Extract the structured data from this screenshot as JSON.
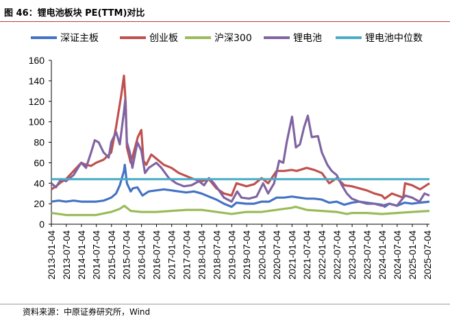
{
  "figure": {
    "title": "图 46：锂电池板块 PE(TTM)对比",
    "source": "资料来源：中原证券研究所，Wind"
  },
  "chart_data": {
    "type": "line",
    "title": "",
    "xlabel": "",
    "ylabel": "",
    "ylim": [
      0,
      160
    ],
    "yticks": [
      0,
      20,
      40,
      60,
      80,
      100,
      120,
      140,
      160
    ],
    "xlim": [
      "2013-01-04",
      "2025-07-31"
    ],
    "xticks": [
      "2013-01-04",
      "2013-07-04",
      "2014-01-04",
      "2014-07-04",
      "2015-01-04",
      "2015-07-04",
      "2016-01-04",
      "2016-07-04",
      "2017-01-04",
      "2017-07-04",
      "2018-01-04",
      "2018-07-04",
      "2019-01-04",
      "2019-07-04",
      "2020-01-04",
      "2020-07-04",
      "2021-01-04",
      "2021-07-04",
      "2022-01-04",
      "2022-07-04",
      "2023-01-04",
      "2023-07-04",
      "2024-01-04",
      "2024-07-04",
      "2025-01-04",
      "2025-07-04"
    ],
    "grid": false,
    "legend_position": "top",
    "series": [
      {
        "name": "深证主板",
        "color": "#4472c4",
        "points": [
          [
            "2013-01-04",
            22
          ],
          [
            "2013-04-01",
            23
          ],
          [
            "2013-07-01",
            22
          ],
          [
            "2013-10-01",
            23
          ],
          [
            "2014-01-01",
            22
          ],
          [
            "2014-04-01",
            22
          ],
          [
            "2014-07-01",
            22
          ],
          [
            "2014-10-01",
            23
          ],
          [
            "2015-01-01",
            26
          ],
          [
            "2015-03-01",
            30
          ],
          [
            "2015-04-15",
            38
          ],
          [
            "2015-06-05",
            52
          ],
          [
            "2015-06-15",
            58
          ],
          [
            "2015-07-10",
            40
          ],
          [
            "2015-08-25",
            32
          ],
          [
            "2015-09-20",
            35
          ],
          [
            "2015-11-15",
            36
          ],
          [
            "2016-01-15",
            28
          ],
          [
            "2016-04-01",
            32
          ],
          [
            "2016-07-01",
            33
          ],
          [
            "2016-10-01",
            34
          ],
          [
            "2017-01-01",
            33
          ],
          [
            "2017-04-01",
            32
          ],
          [
            "2017-07-01",
            31
          ],
          [
            "2017-10-01",
            32
          ],
          [
            "2018-01-01",
            30
          ],
          [
            "2018-04-01",
            27
          ],
          [
            "2018-07-01",
            24
          ],
          [
            "2018-10-01",
            20
          ],
          [
            "2019-01-01",
            17
          ],
          [
            "2019-03-01",
            21
          ],
          [
            "2019-07-01",
            20
          ],
          [
            "2019-10-01",
            20
          ],
          [
            "2020-01-01",
            22
          ],
          [
            "2020-04-01",
            22
          ],
          [
            "2020-07-01",
            26
          ],
          [
            "2020-10-01",
            26
          ],
          [
            "2021-01-01",
            27
          ],
          [
            "2021-04-01",
            26
          ],
          [
            "2021-07-01",
            25
          ],
          [
            "2021-10-01",
            25
          ],
          [
            "2022-01-01",
            24
          ],
          [
            "2022-04-01",
            21
          ],
          [
            "2022-07-01",
            22
          ],
          [
            "2022-10-01",
            19
          ],
          [
            "2023-01-01",
            21
          ],
          [
            "2023-04-01",
            22
          ],
          [
            "2023-07-01",
            21
          ],
          [
            "2023-10-01",
            20
          ],
          [
            "2024-01-01",
            19
          ],
          [
            "2024-02-05",
            17
          ],
          [
            "2024-04-01",
            20
          ],
          [
            "2024-07-01",
            18
          ],
          [
            "2024-10-01",
            21
          ],
          [
            "2025-01-01",
            20
          ],
          [
            "2025-04-01",
            21
          ],
          [
            "2025-07-31",
            22
          ]
        ]
      },
      {
        "name": "创业板",
        "color": "#c0504d",
        "points": [
          [
            "2013-01-04",
            34
          ],
          [
            "2013-03-01",
            37
          ],
          [
            "2013-05-01",
            41
          ],
          [
            "2013-07-01",
            44
          ],
          [
            "2013-10-01",
            52
          ],
          [
            "2014-01-01",
            60
          ],
          [
            "2014-03-01",
            58
          ],
          [
            "2014-05-01",
            57
          ],
          [
            "2014-07-01",
            60
          ],
          [
            "2014-10-01",
            63
          ],
          [
            "2015-01-01",
            70
          ],
          [
            "2015-03-01",
            95
          ],
          [
            "2015-05-01",
            125
          ],
          [
            "2015-06-05",
            145
          ],
          [
            "2015-06-25",
            118
          ],
          [
            "2015-07-10",
            75
          ],
          [
            "2015-08-25",
            60
          ],
          [
            "2015-10-01",
            70
          ],
          [
            "2015-11-20",
            85
          ],
          [
            "2016-01-01",
            92
          ],
          [
            "2016-01-28",
            62
          ],
          [
            "2016-03-01",
            58
          ],
          [
            "2016-05-01",
            68
          ],
          [
            "2016-07-01",
            64
          ],
          [
            "2016-10-01",
            58
          ],
          [
            "2017-01-01",
            55
          ],
          [
            "2017-04-01",
            50
          ],
          [
            "2017-07-01",
            47
          ],
          [
            "2017-10-01",
            44
          ],
          [
            "2018-01-01",
            42
          ],
          [
            "2018-04-01",
            44
          ],
          [
            "2018-07-01",
            35
          ],
          [
            "2018-10-01",
            30
          ],
          [
            "2019-01-01",
            28
          ],
          [
            "2019-03-01",
            40
          ],
          [
            "2019-07-01",
            37
          ],
          [
            "2019-10-01",
            39
          ],
          [
            "2020-01-01",
            45
          ],
          [
            "2020-03-20",
            40
          ],
          [
            "2020-07-01",
            52
          ],
          [
            "2020-10-01",
            52
          ],
          [
            "2021-01-01",
            53
          ],
          [
            "2021-03-01",
            52
          ],
          [
            "2021-07-01",
            55
          ],
          [
            "2021-10-01",
            53
          ],
          [
            "2022-01-01",
            50
          ],
          [
            "2022-04-01",
            40
          ],
          [
            "2022-07-01",
            45
          ],
          [
            "2022-10-01",
            38
          ],
          [
            "2023-01-01",
            37
          ],
          [
            "2023-04-01",
            35
          ],
          [
            "2023-07-01",
            33
          ],
          [
            "2023-10-01",
            30
          ],
          [
            "2024-01-01",
            28
          ],
          [
            "2024-02-05",
            25
          ],
          [
            "2024-05-01",
            30
          ],
          [
            "2024-09-15",
            26
          ],
          [
            "2024-10-08",
            40
          ],
          [
            "2025-01-01",
            38
          ],
          [
            "2025-04-08",
            34
          ],
          [
            "2025-07-31",
            40
          ]
        ]
      },
      {
        "name": "沪深300",
        "color": "#9bbb59",
        "points": [
          [
            "2013-01-04",
            11
          ],
          [
            "2013-07-01",
            9
          ],
          [
            "2014-01-01",
            9
          ],
          [
            "2014-07-01",
            9
          ],
          [
            "2015-01-01",
            12
          ],
          [
            "2015-04-15",
            15
          ],
          [
            "2015-06-10",
            18
          ],
          [
            "2015-08-25",
            13
          ],
          [
            "2016-01-01",
            12
          ],
          [
            "2016-07-01",
            12
          ],
          [
            "2017-01-01",
            13
          ],
          [
            "2017-07-01",
            14
          ],
          [
            "2018-01-01",
            14
          ],
          [
            "2018-07-01",
            12
          ],
          [
            "2019-01-01",
            10
          ],
          [
            "2019-07-01",
            12
          ],
          [
            "2020-01-01",
            12
          ],
          [
            "2020-07-01",
            14
          ],
          [
            "2021-01-01",
            16
          ],
          [
            "2021-02-15",
            17
          ],
          [
            "2021-07-01",
            14
          ],
          [
            "2022-01-01",
            13
          ],
          [
            "2022-07-01",
            12
          ],
          [
            "2022-10-31",
            10
          ],
          [
            "2023-01-01",
            11
          ],
          [
            "2023-07-01",
            11
          ],
          [
            "2024-01-01",
            10
          ],
          [
            "2024-07-01",
            11
          ],
          [
            "2025-01-01",
            12
          ],
          [
            "2025-07-31",
            13
          ]
        ]
      },
      {
        "name": "锂电池",
        "color": "#8064a2",
        "points": [
          [
            "2013-01-04",
            40
          ],
          [
            "2013-03-01",
            36
          ],
          [
            "2013-05-01",
            44
          ],
          [
            "2013-07-01",
            42
          ],
          [
            "2013-10-01",
            48
          ],
          [
            "2014-01-01",
            60
          ],
          [
            "2014-03-01",
            55
          ],
          [
            "2014-05-01",
            70
          ],
          [
            "2014-06-15",
            82
          ],
          [
            "2014-08-01",
            80
          ],
          [
            "2014-10-01",
            70
          ],
          [
            "2014-12-01",
            65
          ],
          [
            "2015-01-01",
            80
          ],
          [
            "2015-03-01",
            90
          ],
          [
            "2015-04-15",
            78
          ],
          [
            "2015-06-05",
            110
          ],
          [
            "2015-06-20",
            122
          ],
          [
            "2015-07-10",
            80
          ],
          [
            "2015-08-15",
            70
          ],
          [
            "2015-09-15",
            55
          ],
          [
            "2015-11-15",
            80
          ],
          [
            "2016-01-01",
            72
          ],
          [
            "2016-02-15",
            50
          ],
          [
            "2016-04-01",
            55
          ],
          [
            "2016-07-01",
            60
          ],
          [
            "2016-09-01",
            55
          ],
          [
            "2016-12-01",
            45
          ],
          [
            "2017-03-01",
            40
          ],
          [
            "2017-06-01",
            37
          ],
          [
            "2017-09-01",
            38
          ],
          [
            "2017-12-01",
            42
          ],
          [
            "2018-02-01",
            38
          ],
          [
            "2018-04-01",
            45
          ],
          [
            "2018-06-01",
            40
          ],
          [
            "2018-08-01",
            33
          ],
          [
            "2018-10-01",
            26
          ],
          [
            "2019-01-01",
            22
          ],
          [
            "2019-03-10",
            32
          ],
          [
            "2019-05-01",
            26
          ],
          [
            "2019-08-01",
            25
          ],
          [
            "2019-11-01",
            27
          ],
          [
            "2020-01-20",
            40
          ],
          [
            "2020-03-20",
            30
          ],
          [
            "2020-06-01",
            40
          ],
          [
            "2020-08-01",
            62
          ],
          [
            "2020-09-20",
            60
          ],
          [
            "2020-11-01",
            80
          ],
          [
            "2021-01-05",
            105
          ],
          [
            "2021-02-20",
            75
          ],
          [
            "2021-04-10",
            78
          ],
          [
            "2021-06-01",
            95
          ],
          [
            "2021-07-15",
            106
          ],
          [
            "2021-09-01",
            85
          ],
          [
            "2021-11-15",
            86
          ],
          [
            "2022-01-01",
            70
          ],
          [
            "2022-03-10",
            58
          ],
          [
            "2022-05-01",
            52
          ],
          [
            "2022-07-01",
            48
          ],
          [
            "2022-09-01",
            38
          ],
          [
            "2022-11-01",
            30
          ],
          [
            "2023-01-01",
            25
          ],
          [
            "2023-04-01",
            22
          ],
          [
            "2023-07-01",
            20
          ],
          [
            "2023-10-01",
            20
          ],
          [
            "2024-01-01",
            18
          ],
          [
            "2024-04-01",
            20
          ],
          [
            "2024-07-01",
            18
          ],
          [
            "2024-10-08",
            28
          ],
          [
            "2025-01-01",
            26
          ],
          [
            "2025-04-01",
            22
          ],
          [
            "2025-06-01",
            30
          ],
          [
            "2025-07-31",
            28
          ]
        ]
      },
      {
        "name": "锂电池中位数",
        "color": "#4bacc6",
        "points": [
          [
            "2013-01-04",
            44
          ],
          [
            "2025-07-31",
            44
          ]
        ]
      }
    ]
  }
}
